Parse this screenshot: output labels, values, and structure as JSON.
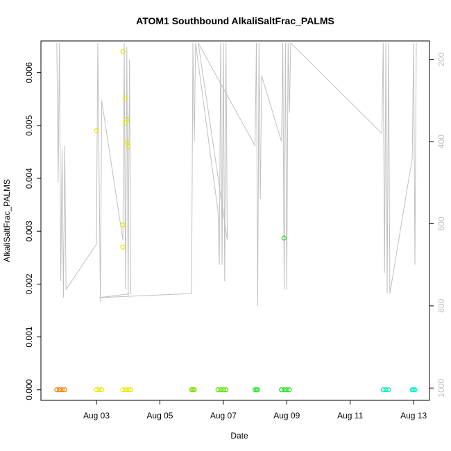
{
  "chart_data": {
    "type": "scatter",
    "title": "ATOM1 Southbound AlkaliSaltFrac_PALMS",
    "xlabel": "Date",
    "ylabel": "AlkaliSaltFrac_PALMS",
    "x_ticks": [
      "Aug 03",
      "Aug 05",
      "Aug 07",
      "Aug 09",
      "Aug 11",
      "Aug 13"
    ],
    "y_ticks": [
      "0.000",
      "0.001",
      "0.002",
      "0.003",
      "0.004",
      "0.005",
      "0.006"
    ],
    "y2_ticks": [
      "200",
      "400",
      "600",
      "800",
      "1000"
    ],
    "xlim": [
      "2016-08-01 06:00",
      "2016-08-13 12:00"
    ],
    "ylim": [
      -0.0002,
      0.0066
    ],
    "y2lim": [
      1030,
      155
    ],
    "y2_reversed": true,
    "y2_color": "#c0c0c0",
    "point_markers": "open circles",
    "pressure_trace": {
      "color": "#c0c0c0",
      "points": [
        [
          "Aug 01 18:00",
          160
        ],
        [
          "Aug 01 19:00",
          500
        ],
        [
          "Aug 01 20:00",
          160
        ],
        [
          "Aug 01 21:00",
          740
        ],
        [
          "Aug 01 22:00",
          420
        ],
        [
          "Aug 01 23:00",
          780
        ],
        [
          "Aug 02 00:00",
          410
        ],
        [
          "Aug 02 01:00",
          760
        ],
        [
          "Aug 03 00:00",
          650
        ],
        [
          "Aug 03 01:00",
          160
        ],
        [
          "Aug 03 03:00",
          790
        ],
        [
          "Aug 03 04:00",
          300
        ],
        [
          "Aug 03 20:00",
          640
        ],
        [
          "Aug 03 21:00",
          160
        ],
        [
          "Aug 03 22:00",
          760
        ],
        [
          "Aug 03 23:00",
          170
        ],
        [
          "Aug 04 00:00",
          780
        ],
        [
          "Aug 04 01:00",
          200
        ],
        [
          "Aug 04 02:00",
          770
        ],
        [
          "Aug 03 02:00",
          780
        ],
        [
          "Aug 06 00:00",
          770
        ],
        [
          "Aug 06 01:00",
          160
        ],
        [
          "Aug 06 02:00",
          400
        ],
        [
          "Aug 06 03:00",
          160
        ],
        [
          "Aug 06 20:00",
          570
        ],
        [
          "Aug 06 21:00",
          700
        ],
        [
          "Aug 06 22:00",
          160
        ],
        [
          "Aug 06 23:00",
          700
        ],
        [
          "Aug 07 00:00",
          160
        ],
        [
          "Aug 07 01:00",
          740
        ],
        [
          "Aug 07 02:00",
          160
        ],
        [
          "Aug 07 03:00",
          640
        ],
        [
          "Aug 06 05:00",
          160
        ],
        [
          "Aug 08 00:00",
          410
        ],
        [
          "Aug 08 01:00",
          160
        ],
        [
          "Aug 08 02:00",
          800
        ],
        [
          "Aug 08 03:00",
          160
        ],
        [
          "Aug 08 04:00",
          540
        ],
        [
          "Aug 08 05:00",
          240
        ],
        [
          "Aug 08 20:00",
          400
        ],
        [
          "Aug 08 21:00",
          160
        ],
        [
          "Aug 08 22:00",
          760
        ],
        [
          "Aug 08 23:00",
          160
        ],
        [
          "Aug 09 00:00",
          760
        ],
        [
          "Aug 09 01:00",
          160
        ],
        [
          "Aug 09 02:00",
          330
        ],
        [
          "Aug 09 03:00",
          160
        ],
        [
          "Aug 12 00:00",
          380
        ],
        [
          "Aug 12 01:00",
          160
        ],
        [
          "Aug 12 02:00",
          720
        ],
        [
          "Aug 12 03:00",
          160
        ],
        [
          "Aug 12 04:00",
          770
        ],
        [
          "Aug 12 05:00",
          160
        ],
        [
          "Aug 12 06:00",
          770
        ],
        [
          "Aug 12 23:00",
          440
        ],
        [
          "Aug 13 00:00",
          160
        ],
        [
          "Aug 13 01:00",
          700
        ],
        [
          "Aug 13 02:00",
          160
        ]
      ]
    },
    "series": [
      {
        "color": "#f08000",
        "points": [
          [
            "Aug 01 18:00",
            0
          ],
          [
            "Aug 01 20:00",
            0
          ],
          [
            "Aug 01 22:00",
            0
          ],
          [
            "Aug 02 00:00",
            0
          ]
        ]
      },
      {
        "color": "#e6e600",
        "points": [
          [
            "Aug 03 00:00",
            0.0049
          ],
          [
            "Aug 03 00:00",
            0
          ],
          [
            "Aug 03 02:00",
            0
          ],
          [
            "Aug 03 04:00",
            0
          ]
        ]
      },
      {
        "color": "#e6e600",
        "points": [
          [
            "Aug 03 20:00",
            0.0064
          ],
          [
            "Aug 03 22:00",
            0.00552
          ],
          [
            "Aug 03 23:00",
            0.00512
          ],
          [
            "Aug 03 22:00",
            0.00505
          ],
          [
            "Aug 03 23:00",
            0.0047
          ],
          [
            "Aug 04 00:00",
            0.0046
          ],
          [
            "Aug 03 20:00",
            0.00312
          ],
          [
            "Aug 03 20:00",
            0.0027
          ],
          [
            "Aug 03 20:00",
            0
          ],
          [
            "Aug 03 22:00",
            0
          ],
          [
            "Aug 04 00:00",
            0
          ],
          [
            "Aug 04 02:00",
            0
          ]
        ]
      },
      {
        "color": "#7cdd00",
        "points": [
          [
            "Aug 06 00:00",
            0
          ],
          [
            "Aug 06 01:00",
            0
          ],
          [
            "Aug 06 02:00",
            0
          ]
        ]
      },
      {
        "color": "#55e000",
        "points": [
          [
            "Aug 06 20:00",
            0
          ],
          [
            "Aug 06 22:00",
            0
          ],
          [
            "Aug 07 00:00",
            0
          ],
          [
            "Aug 07 02:00",
            0
          ]
        ]
      },
      {
        "color": "#33e633",
        "points": [
          [
            "Aug 08 00:00",
            0
          ],
          [
            "Aug 08 01:00",
            0
          ],
          [
            "Aug 08 02:00",
            0
          ]
        ]
      },
      {
        "color": "#22dd22",
        "points": [
          [
            "Aug 08 22:00",
            0.00287
          ],
          [
            "Aug 08 20:00",
            0
          ],
          [
            "Aug 08 22:00",
            0
          ],
          [
            "Aug 09 00:00",
            0
          ],
          [
            "Aug 09 02:00",
            0
          ]
        ]
      },
      {
        "color": "#00e6b0",
        "points": [
          [
            "Aug 12 01:00",
            0
          ],
          [
            "Aug 12 03:00",
            0
          ],
          [
            "Aug 12 05:00",
            0
          ]
        ]
      },
      {
        "color": "#00eec8",
        "points": [
          [
            "Aug 12 23:00",
            0
          ],
          [
            "Aug 13 00:00",
            0
          ],
          [
            "Aug 13 01:00",
            0
          ]
        ]
      }
    ]
  }
}
